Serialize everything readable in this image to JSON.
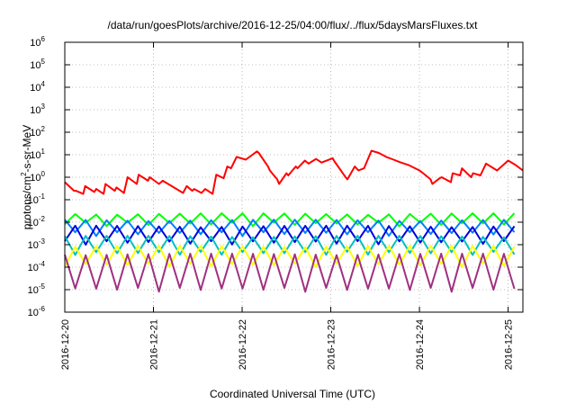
{
  "chart_data": {
    "type": "line",
    "title": "/data/run/goesPlots/archive/2016-12-25/04:00/flux/../flux/5daysMarsFluxes.txt",
    "xlabel": "Coordinated Universal Time (UTC)",
    "ylabel": "protons/cm2-s-sr-MeV",
    "ylabel_parts": {
      "base": "protons/cm",
      "sup": "2",
      "rest": "-s-sr-MeV"
    },
    "yscale": "log",
    "ylim": [
      1e-06,
      1000000.0
    ],
    "xlim": [
      "2016-12-20 00:00",
      "2016-12-25 04:00"
    ],
    "grid": true,
    "x_tick_labels": [
      "2016-12-20",
      "2016-12-21",
      "2016-12-22",
      "2016-12-23",
      "2016-12-24",
      "2016-12-25"
    ],
    "y_tick_labels": [
      {
        "base": "10",
        "exp": "-6"
      },
      {
        "base": "10",
        "exp": "-5"
      },
      {
        "base": "10",
        "exp": "-4"
      },
      {
        "base": "10",
        "exp": "-3"
      },
      {
        "base": "10",
        "exp": "-2"
      },
      {
        "base": "10",
        "exp": "-1"
      },
      {
        "base": "10",
        "exp": "0"
      },
      {
        "base": "10",
        "exp": "1"
      },
      {
        "base": "10",
        "exp": "2"
      },
      {
        "base": "10",
        "exp": "3"
      },
      {
        "base": "10",
        "exp": "4"
      },
      {
        "base": "10",
        "exp": "5"
      },
      {
        "base": "10",
        "exp": "6"
      }
    ],
    "series": [
      {
        "color": "#ff0000",
        "x": [
          "2016-12-20 00:00",
          "2016-12-20 02:30",
          "2016-12-20 03:00",
          "2016-12-20 05:00",
          "2016-12-20 05:30",
          "2016-12-20 08:00",
          "2016-12-20 08:30",
          "2016-12-20 10:30",
          "2016-12-20 11:00",
          "2016-12-20 13:30",
          "2016-12-20 14:00",
          "2016-12-20 16:00",
          "2016-12-20 17:00",
          "2016-12-20 19:30",
          "2016-12-20 20:00",
          "2016-12-20 22:30",
          "2016-12-20 23:00",
          "2016-12-21 01:30",
          "2016-12-21 02:30",
          "2016-12-21 08:00",
          "2016-12-21 09:00",
          "2016-12-21 10:30",
          "2016-12-21 11:00",
          "2016-12-21 13:00",
          "2016-12-21 14:00",
          "2016-12-21 16:00",
          "2016-12-21 17:00",
          "2016-12-21 19:00",
          "2016-12-21 20:00",
          "2016-12-21 21:00",
          "2016-12-21 22:30",
          "2016-12-22 01:00",
          "2016-12-22 04:00",
          "2016-12-22 04:30",
          "2016-12-22 07:00",
          "2016-12-22 07:30",
          "2016-12-22 09:30",
          "2016-12-22 10:00",
          "2016-12-22 12:00",
          "2016-12-22 12:30",
          "2016-12-22 14:30",
          "2016-12-22 15:00",
          "2016-12-22 17:00",
          "2016-12-22 18:00",
          "2016-12-22 20:00",
          "2016-12-22 21:30",
          "2016-12-23 00:30",
          "2016-12-23 01:00",
          "2016-12-23 04:00",
          "2016-12-23 04:30",
          "2016-12-23 06:30",
          "2016-12-23 07:30",
          "2016-12-23 09:00",
          "2016-12-23 11:00",
          "2016-12-23 13:00",
          "2016-12-23 15:00",
          "2016-12-23 17:00",
          "2016-12-23 19:00",
          "2016-12-23 21:00",
          "2016-12-24 00:00",
          "2016-12-24 01:00",
          "2016-12-24 03:00",
          "2016-12-24 03:30",
          "2016-12-24 05:30",
          "2016-12-24 06:00",
          "2016-12-24 08:30",
          "2016-12-24 09:00",
          "2016-12-24 11:00",
          "2016-12-24 11:30",
          "2016-12-24 14:00",
          "2016-12-24 14:30",
          "2016-12-24 16:30",
          "2016-12-24 18:00",
          "2016-12-24 21:00",
          "2016-12-25 00:00",
          "2016-12-25 02:00",
          "2016-12-25 04:00"
        ],
        "values": [
          0.6,
          0.25,
          0.25,
          0.18,
          0.4,
          0.22,
          0.3,
          0.18,
          0.5,
          0.25,
          0.35,
          0.2,
          1.0,
          0.5,
          1.3,
          0.7,
          1.0,
          0.5,
          0.7,
          0.2,
          0.4,
          0.25,
          0.3,
          0.2,
          0.3,
          0.18,
          1.3,
          0.9,
          3.0,
          2.5,
          8.0,
          6.0,
          14.0,
          12.0,
          3.0,
          2.0,
          0.8,
          0.5,
          1.5,
          1.2,
          3.0,
          2.5,
          5.5,
          4.0,
          6.5,
          4.5,
          7.0,
          5.0,
          1.0,
          0.8,
          3.0,
          2.0,
          2.5,
          15.0,
          12.0,
          8.0,
          6.0,
          4.5,
          3.5,
          2.0,
          1.5,
          0.8,
          0.5,
          0.9,
          1.0,
          0.6,
          1.5,
          1.2,
          2.5,
          1.0,
          1.5,
          1.2,
          4.0,
          2.0,
          5.5,
          3.5,
          2.0
        ]
      },
      {
        "color": "#00ff00",
        "min": 0.008,
        "max": 0.025
      },
      {
        "color": "#0080ff",
        "min": 0.003,
        "max": 0.013
      },
      {
        "color": "#0000dd",
        "min": 0.0012,
        "max": 0.007
      },
      {
        "color": "#00c0c0",
        "min": 0.0004,
        "max": 0.0025
      },
      {
        "color": "#ffff00",
        "min": 0.00012,
        "max": 0.0009
      },
      {
        "color": "#a03080",
        "min": 1e-05,
        "max": 0.0004
      }
    ]
  }
}
